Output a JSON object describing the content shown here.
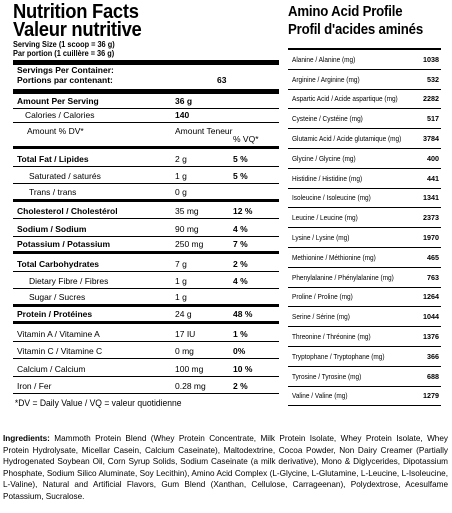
{
  "nutrition": {
    "title_en": "Nutrition Facts",
    "title_fr": "Valeur nutritive",
    "serving_size": "Serving Size (1 scoop = 36 g)",
    "serving_size_fr": "Par portion (1 cuillère = 36 g)",
    "servings_label": "Servings Per Container:",
    "servings_label_fr": "Portions par contenant:",
    "servings_value": "63",
    "amount_label": "Amount Per Serving",
    "amount_value": "36 g",
    "calories_label": "Calories / Calories",
    "calories_value": "140",
    "dv_label": "Amount % DV*",
    "amount_teneur": "Amount Teneur",
    "vq_label": "% VQ*",
    "rows": [
      {
        "name": "Total Fat / Lipides",
        "amount": "2 g",
        "pct": "5 %",
        "bold": true,
        "indent": false
      },
      {
        "name": "Saturated / saturés",
        "amount": "1 g",
        "pct": "5 %",
        "bold": false,
        "indent": true
      },
      {
        "name": "Trans / trans",
        "amount": "0 g",
        "pct": "",
        "bold": false,
        "indent": true
      },
      {
        "name": "Cholesterol / Cholestérol",
        "amount": "35 mg",
        "pct": "12 %",
        "bold": true,
        "indent": false
      },
      {
        "name": "Sodium / Sodium",
        "amount": "90 mg",
        "pct": "4 %",
        "bold": true,
        "indent": false
      },
      {
        "name": "Potassium / Potassium",
        "amount": "250 mg",
        "pct": "7 %",
        "bold": true,
        "indent": false
      },
      {
        "name": "Total Carbohydrates",
        "amount": "7 g",
        "pct": "2 %",
        "bold": true,
        "indent": false
      },
      {
        "name": "Dietary Fibre / Fibres",
        "amount": "1 g",
        "pct": "4 %",
        "bold": false,
        "indent": true
      },
      {
        "name": "Sugar / Sucres",
        "amount": "1 g",
        "pct": "",
        "bold": false,
        "indent": true
      },
      {
        "name": "Protein / Protéines",
        "amount": "24 g",
        "pct": "48 %",
        "bold": true,
        "indent": false
      },
      {
        "name": "Vitamin A / Vitamine A",
        "amount": "17 IU",
        "pct": "1 %",
        "bold": false,
        "indent": false
      },
      {
        "name": "Vitamin C / Vitamine C",
        "amount": "0 mg",
        "pct": "0%",
        "bold": false,
        "indent": false
      },
      {
        "name": "Calcium / Calcium",
        "amount": "100 mg",
        "pct": "10 %",
        "bold": false,
        "indent": false
      },
      {
        "name": "Iron / Fer",
        "amount": "0.28 mg",
        "pct": "2 %",
        "bold": false,
        "indent": false
      }
    ],
    "footnote": "*DV = Daily Value / VQ = valeur quotidienne"
  },
  "amino": {
    "title_en": "Amino Acid Profile",
    "title_fr": "Profil d'acides aminés",
    "rows": [
      {
        "name": "Alanine / Alanine (mg)",
        "value": "1038"
      },
      {
        "name": "Arginine / Arginine (mg)",
        "value": "532"
      },
      {
        "name": "Aspartic Acid / Acide aspartique (mg)",
        "value": "2282"
      },
      {
        "name": "Cysteine / Cystéine (mg)",
        "value": "517"
      },
      {
        "name": "Glutamic Acid / Acide glutamique (mg)",
        "value": "3784"
      },
      {
        "name": "Glycine / Glycine (mg)",
        "value": "400"
      },
      {
        "name": "Histidine / Histidine (mg)",
        "value": "441"
      },
      {
        "name": "Isoleucine / Isoleucine (mg)",
        "value": "1341"
      },
      {
        "name": "Leucine / Leucine (mg)",
        "value": "2373"
      },
      {
        "name": "Lysine / Lysine (mg)",
        "value": "1970"
      },
      {
        "name": "Methionine / Méthionine (mg)",
        "value": "465"
      },
      {
        "name": "Phenylalanine / Phénylalanine (mg)",
        "value": "763"
      },
      {
        "name": "Proline / Proline (mg)",
        "value": "1264"
      },
      {
        "name": "Serine / Sérine (mg)",
        "value": "1044"
      },
      {
        "name": "Threonine / Thréonine (mg)",
        "value": "1376"
      },
      {
        "name": "Tryptophane / Tryptophane (mg)",
        "value": "366"
      },
      {
        "name": "Tyrosine / Tyrosine (mg)",
        "value": "688"
      },
      {
        "name": "Valine / Valine (mg)",
        "value": "1279"
      }
    ]
  },
  "ingredients": {
    "label": "Ingredients:",
    "text": "Mammoth Protein Blend (Whey Protein Concentrate, Milk Protein Isolate, Whey Protein Isolate, Whey Protein Hydrolysate, Micellar Casein, Calcium Caseinate), Maltodextrine, Cocoa Powder, Non Dairy Creamer (Partially Hydrogenated Soybean Oil, Corn Syrup Solids, Sodium Caseinate (a milk derivative), Mono & Diglycerides, Dipotassium Phosphate, Sodium Silico Aluminate, Soy Lecithin), Amino Acid Complex (L-Glycine, L-Glutamine, L-Leucine, L-Isoleucine, L-Valine), Natural and Artificial Flavors, Gum Blend (Xanthan, Cellulose, Carrageenan), Polydextrose, Acesulfame Potassium, Sucralose."
  }
}
